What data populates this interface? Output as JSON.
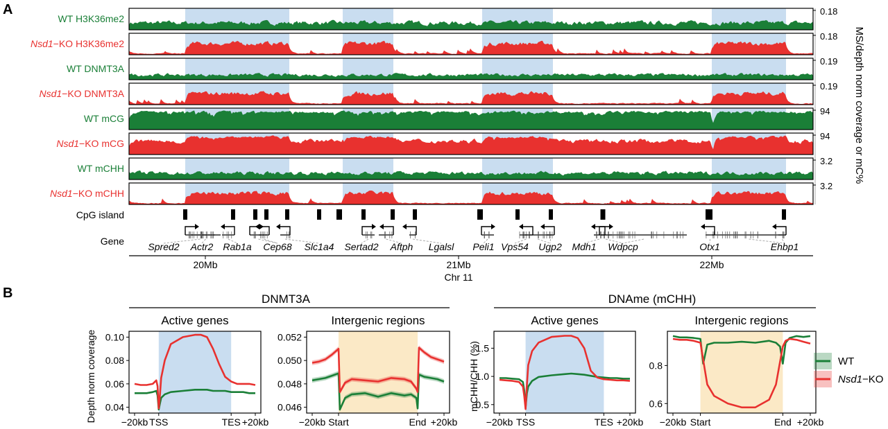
{
  "panel_a": {
    "letter": "A",
    "right_axis_label": "MS/depth norm coverage or mC%",
    "tracks": [
      {
        "genotype": "WT",
        "mark": "H3K36me2",
        "max": "0.18",
        "color": "#1a7f37"
      },
      {
        "genotype": "Nsd1",
        "suffix": "−KO",
        "mark": "H3K36me2",
        "max": "0.18",
        "color": "#e8312f"
      },
      {
        "genotype": "WT",
        "mark": "DNMT3A",
        "max": "0.19",
        "color": "#1a7f37"
      },
      {
        "genotype": "Nsd1",
        "suffix": "−KO",
        "mark": "DNMT3A",
        "max": "0.19",
        "color": "#e8312f"
      },
      {
        "genotype": "WT",
        "mark": "mCG",
        "max": "94",
        "color": "#1a7f37"
      },
      {
        "genotype": "Nsd1",
        "suffix": "−KO",
        "mark": "mCG",
        "max": "94",
        "color": "#e8312f"
      },
      {
        "genotype": "WT",
        "mark": "mCHH",
        "max": "3.2",
        "color": "#1a7f37"
      },
      {
        "genotype": "Nsd1",
        "suffix": "−KO",
        "mark": "mCHH",
        "max": "3.2",
        "color": "#e8312f"
      }
    ],
    "cpg_label": "CpG island",
    "gene_label": "Gene",
    "genes": [
      "Spred2",
      "Actr2",
      "Rab1a",
      "Cep68",
      "Slc1a4",
      "Sertad2",
      "Aftph",
      "Lgalsl",
      "Peli1",
      "Vps54",
      "Ugp2",
      "Mdh1",
      "Wdpcp",
      "Otx1",
      "Ehbp1"
    ],
    "x_ticks": [
      "20Mb",
      "21Mb",
      "22Mb"
    ],
    "x_label": "Chr 11"
  },
  "panel_b": {
    "letter": "B",
    "group_left": "DNMT3A",
    "group_right": "DNAme (mCHH)",
    "legend": [
      {
        "label": "WT",
        "color": "#1a7f37"
      },
      {
        "label_italic": "Nsd1",
        "label_rest": "−KO",
        "color": "#e8312f"
      }
    ]
  },
  "colors": {
    "wt": "#1a7f37",
    "ko": "#e8312f",
    "highlight_blue": "#c9ddf0",
    "highlight_orange": "#fbe9c6"
  },
  "chart_data": [
    {
      "type": "line",
      "title": "Active genes",
      "group": "DNMT3A",
      "ylabel": "Depth norm coverage",
      "x_ticks": [
        "−20kb",
        "TSS",
        "TES",
        "+20kb"
      ],
      "y_ticks": [
        "0.04",
        "0.06",
        "0.08",
        "0.10"
      ],
      "ylim": [
        0.035,
        0.105
      ],
      "highlight": "TSS–TES",
      "x": [
        -20,
        -15,
        -10,
        -5,
        -2,
        -1,
        0,
        1,
        2,
        5,
        10,
        20,
        30,
        35,
        40,
        45,
        50,
        55,
        60,
        65,
        70,
        75,
        80
      ],
      "series": [
        {
          "name": "WT",
          "values": [
            0.052,
            0.052,
            0.052,
            0.053,
            0.054,
            0.05,
            0.038,
            0.043,
            0.048,
            0.051,
            0.053,
            0.054,
            0.055,
            0.055,
            0.055,
            0.054,
            0.054,
            0.054,
            0.053,
            0.053,
            0.053,
            0.052,
            0.052
          ]
        },
        {
          "name": "Nsd1−KO",
          "values": [
            0.06,
            0.059,
            0.059,
            0.06,
            0.063,
            0.058,
            0.039,
            0.05,
            0.065,
            0.08,
            0.094,
            0.1,
            0.102,
            0.102,
            0.1,
            0.09,
            0.077,
            0.066,
            0.062,
            0.06,
            0.06,
            0.06,
            0.059
          ]
        }
      ]
    },
    {
      "type": "line",
      "title": "Intergenic regions",
      "group": "DNMT3A",
      "x_ticks": [
        "−20kb",
        "Start",
        "End",
        "+20kb"
      ],
      "y_ticks": [
        "0.046",
        "0.048",
        "0.050",
        "0.052"
      ],
      "ylim": [
        0.0455,
        0.0525
      ],
      "highlight": "Start–End",
      "x": [
        -20,
        -15,
        -10,
        -5,
        0,
        1,
        5,
        10,
        20,
        30,
        40,
        50,
        55,
        59,
        60,
        61,
        65,
        70,
        75,
        80
      ],
      "series": [
        {
          "name": "WT",
          "values": [
            0.0483,
            0.0484,
            0.0485,
            0.0487,
            0.0489,
            0.0458,
            0.0468,
            0.0471,
            0.0472,
            0.0469,
            0.0472,
            0.047,
            0.0471,
            0.0468,
            0.0459,
            0.0488,
            0.0486,
            0.0485,
            0.0484,
            0.0482
          ]
        },
        {
          "name": "Nsd1−KO",
          "values": [
            0.0498,
            0.0499,
            0.0501,
            0.0505,
            0.051,
            0.0473,
            0.0481,
            0.0484,
            0.0483,
            0.0482,
            0.0485,
            0.0484,
            0.0482,
            0.0476,
            0.0473,
            0.0511,
            0.0507,
            0.0503,
            0.0501,
            0.0499
          ]
        }
      ]
    },
    {
      "type": "line",
      "title": "Active genes",
      "group": "DNAme (mCHH)",
      "ylabel": "mCHH/CHH (%)",
      "x_ticks": [
        "−20kb",
        "TSS",
        "TES",
        "+20kb"
      ],
      "y_ticks": [
        "0.5",
        "1.0",
        "1.5"
      ],
      "ylim": [
        0.35,
        1.8
      ],
      "highlight": "TSS–TES",
      "x": [
        -20,
        -15,
        -10,
        -5,
        -2,
        -1,
        0,
        1,
        2,
        5,
        10,
        20,
        30,
        35,
        40,
        45,
        50,
        55,
        60,
        65,
        70,
        75,
        80
      ],
      "series": [
        {
          "name": "WT",
          "values": [
            0.97,
            0.97,
            0.96,
            0.95,
            0.9,
            0.75,
            0.45,
            0.7,
            0.82,
            0.92,
            0.99,
            1.02,
            1.04,
            1.05,
            1.04,
            1.03,
            1.01,
            0.99,
            0.98,
            0.97,
            0.97,
            0.96,
            0.96
          ]
        },
        {
          "name": "Nsd1−KO",
          "values": [
            0.94,
            0.93,
            0.92,
            0.9,
            0.82,
            0.65,
            0.42,
            0.85,
            1.2,
            1.45,
            1.6,
            1.7,
            1.72,
            1.72,
            1.68,
            1.5,
            1.1,
            0.98,
            0.95,
            0.94,
            0.93,
            0.93,
            0.92
          ]
        }
      ]
    },
    {
      "type": "line",
      "title": "Intergenic regions",
      "group": "DNAme (mCHH)",
      "x_ticks": [
        "−20kb",
        "Start",
        "End",
        "+20kb"
      ],
      "y_ticks": [
        "0.6",
        "0.8"
      ],
      "ylim": [
        0.55,
        0.98
      ],
      "highlight": "Start–End",
      "x": [
        -20,
        -15,
        -10,
        -5,
        0,
        2,
        5,
        10,
        20,
        30,
        40,
        50,
        55,
        58,
        60,
        62,
        65,
        70,
        75,
        80
      ],
      "series": [
        {
          "name": "WT",
          "values": [
            0.955,
            0.948,
            0.948,
            0.945,
            0.94,
            0.81,
            0.91,
            0.92,
            0.92,
            0.925,
            0.92,
            0.93,
            0.92,
            0.9,
            0.81,
            0.92,
            0.945,
            0.955,
            0.95,
            0.955
          ]
        },
        {
          "name": "Nsd1−KO",
          "values": [
            0.94,
            0.935,
            0.935,
            0.93,
            0.92,
            0.83,
            0.7,
            0.64,
            0.6,
            0.58,
            0.58,
            0.62,
            0.7,
            0.82,
            0.9,
            0.93,
            0.94,
            0.935,
            0.925,
            0.915
          ]
        }
      ]
    }
  ]
}
